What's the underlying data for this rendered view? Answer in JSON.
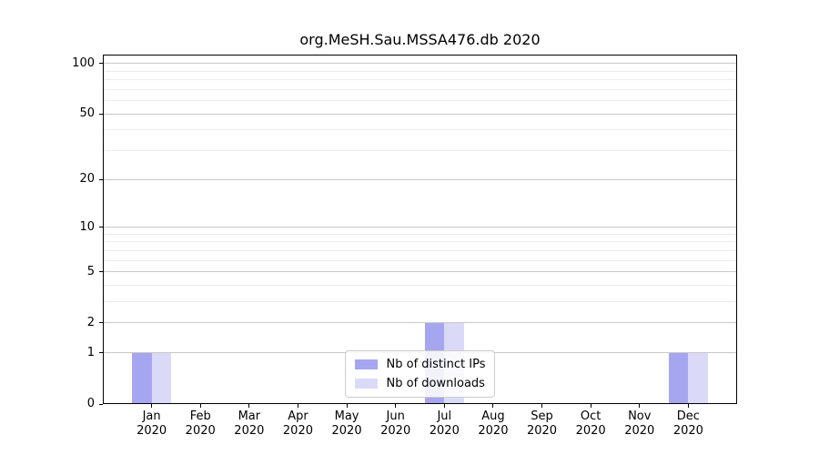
{
  "chart_data": {
    "type": "bar",
    "title": "org.MeSH.Sau.MSSA476.db 2020",
    "categories": [
      {
        "month": "Jan",
        "year": "2020"
      },
      {
        "month": "Feb",
        "year": "2020"
      },
      {
        "month": "Mar",
        "year": "2020"
      },
      {
        "month": "Apr",
        "year": "2020"
      },
      {
        "month": "May",
        "year": "2020"
      },
      {
        "month": "Jun",
        "year": "2020"
      },
      {
        "month": "Jul",
        "year": "2020"
      },
      {
        "month": "Aug",
        "year": "2020"
      },
      {
        "month": "Sep",
        "year": "2020"
      },
      {
        "month": "Oct",
        "year": "2020"
      },
      {
        "month": "Nov",
        "year": "2020"
      },
      {
        "month": "Dec",
        "year": "2020"
      }
    ],
    "series": [
      {
        "name": "Nb of distinct IPs",
        "color": "#a6a6f0",
        "values": [
          1,
          0,
          0,
          0,
          0,
          0,
          2,
          0,
          0,
          0,
          0,
          1
        ]
      },
      {
        "name": "Nb of downloads",
        "color": "#dadaf8",
        "values": [
          1,
          0,
          0,
          0,
          0,
          0,
          2,
          0,
          0,
          0,
          0,
          1
        ]
      }
    ],
    "yscale": "log1p",
    "yticks": [
      0,
      1,
      2,
      5,
      10,
      20,
      50,
      100
    ],
    "minor_gridlines": [
      3,
      4,
      6,
      7,
      8,
      9,
      30,
      40,
      60,
      70,
      80,
      90
    ],
    "ylim": [
      0,
      113
    ],
    "xlabel": "",
    "ylabel": "",
    "grid": "horizontal",
    "legend_position": "lower center",
    "colors": {
      "major_grid": "#c8c8c8",
      "minor_grid": "#ececec",
      "axis": "#000000",
      "background": "#ffffff"
    }
  }
}
